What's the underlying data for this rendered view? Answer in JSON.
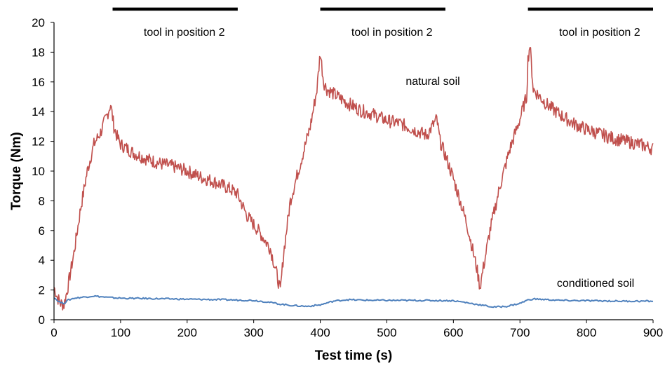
{
  "chart_data": {
    "type": "line",
    "title": "",
    "xlabel": "Test time  (s)",
    "ylabel": "Torque  (Nm)",
    "xlim": [
      0,
      900
    ],
    "ylim": [
      0,
      20
    ],
    "xticks": [
      0,
      100,
      200,
      300,
      400,
      500,
      600,
      700,
      800,
      900
    ],
    "yticks": [
      0,
      2,
      4,
      6,
      8,
      10,
      12,
      14,
      16,
      18,
      20
    ],
    "grid": false,
    "legend": "none",
    "series": [
      {
        "name": "natural soil",
        "color": "#c0504d",
        "x": [
          0,
          5,
          10,
          15,
          20,
          30,
          40,
          50,
          60,
          70,
          80,
          85,
          90,
          95,
          100,
          120,
          140,
          160,
          180,
          200,
          220,
          240,
          260,
          275,
          290,
          310,
          325,
          335,
          340,
          345,
          355,
          370,
          385,
          395,
          400,
          405,
          410,
          420,
          440,
          460,
          480,
          500,
          520,
          540,
          560,
          575,
          580,
          590,
          600,
          620,
          635,
          640,
          645,
          655,
          670,
          685,
          700,
          705,
          710,
          712,
          715,
          720,
          740,
          760,
          780,
          800,
          820,
          840,
          860,
          880,
          900
        ],
        "y": [
          2.2,
          1.5,
          1.1,
          1.0,
          2.0,
          4.5,
          7.5,
          10.0,
          11.8,
          12.6,
          13.8,
          14.5,
          13.0,
          12.3,
          11.8,
          11.2,
          10.8,
          10.5,
          10.3,
          10.0,
          9.6,
          9.3,
          8.9,
          8.5,
          7.0,
          5.8,
          4.8,
          3.0,
          1.9,
          4.5,
          8.0,
          10.5,
          13.0,
          15.5,
          18.0,
          16.0,
          15.5,
          15.2,
          14.6,
          14.1,
          13.8,
          13.4,
          13.2,
          12.8,
          12.4,
          13.5,
          12.0,
          10.8,
          9.5,
          6.5,
          3.5,
          2.2,
          3.5,
          6.0,
          9.0,
          11.5,
          13.5,
          14.3,
          15.0,
          17.5,
          18.5,
          15.5,
          14.5,
          13.8,
          13.2,
          12.8,
          12.5,
          12.2,
          12.0,
          11.8,
          11.5
        ]
      },
      {
        "name": "conditioned soil",
        "color": "#4f81bd",
        "x": [
          0,
          5,
          10,
          15,
          20,
          30,
          40,
          50,
          60,
          80,
          100,
          150,
          200,
          250,
          300,
          320,
          340,
          360,
          380,
          400,
          420,
          440,
          460,
          500,
          550,
          600,
          620,
          640,
          660,
          680,
          700,
          710,
          720,
          740,
          760,
          800,
          850,
          900
        ],
        "y": [
          1.5,
          1.3,
          1.15,
          1.1,
          1.3,
          1.45,
          1.5,
          1.55,
          1.6,
          1.5,
          1.45,
          1.42,
          1.38,
          1.35,
          1.3,
          1.2,
          1.05,
          0.95,
          0.9,
          1.0,
          1.25,
          1.35,
          1.32,
          1.3,
          1.3,
          1.28,
          1.15,
          1.0,
          0.85,
          0.9,
          1.1,
          1.3,
          1.4,
          1.35,
          1.3,
          1.28,
          1.25,
          1.25
        ]
      }
    ],
    "annotations": [
      {
        "text": "tool in position  2",
        "x_start": 88,
        "x_end": 276
      },
      {
        "text": "tool in position  2",
        "x_start": 400,
        "x_end": 588
      },
      {
        "text": "tool in position  2",
        "x_start": 712,
        "x_end": 900
      }
    ],
    "series_labels": [
      {
        "series": 0,
        "text": "natural soil"
      },
      {
        "series": 1,
        "text": "conditioned soil"
      }
    ]
  }
}
